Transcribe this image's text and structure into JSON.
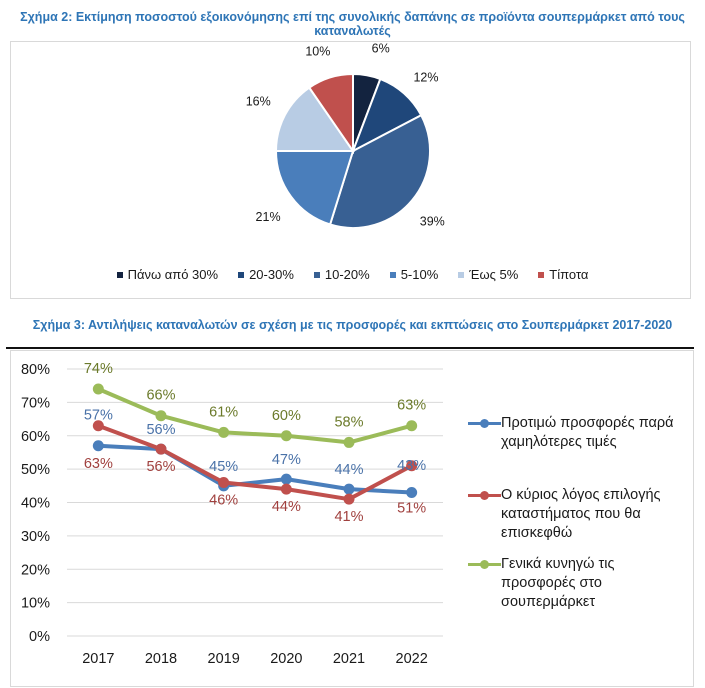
{
  "figure2": {
    "title": "Σχήμα 2: Εκτίμηση ποσοστού εξοικονόμησης επί της συνολικής δαπάνης σε προϊόντα σουπερμάρκετ από τους καταναλωτές"
  },
  "figure3": {
    "title": "Σχήμα 3: Αντιλήψεις καταναλωτών σε σχέση με τις προσφορές και εκπτώσεις στο Σουπερμάρκετ 2017-2020"
  },
  "chart_data": [
    {
      "type": "pie",
      "title": "Σχήμα 2: Εκτίμηση ποσοστού εξοικονόμησης επί της συνολικής δαπάνης σε προϊόντα σουπερμάρκετ από τους καταναλωτές",
      "categories": [
        "Πάνω από 30%",
        "20-30%",
        "10-20%",
        "5-10%",
        "Έως 5%",
        "Τίποτα"
      ],
      "values": [
        6,
        12,
        39,
        21,
        16,
        10
      ],
      "labels": [
        "6%",
        "12%",
        "39%",
        "21%",
        "16%",
        "10%"
      ],
      "colors": [
        "#13233f",
        "#1f477a",
        "#386093",
        "#4a7ebb",
        "#b8cce4",
        "#c0504d"
      ],
      "legend": "bottom",
      "start": "top",
      "direction": "clockwise"
    },
    {
      "type": "line",
      "title": "Σχήμα 3: Αντιλήψεις καταναλωτών σε σχέση με τις προσφορές και εκπτώσεις στο Σουπερμάρκετ 2017-2020",
      "x": [
        "2017",
        "2018",
        "2019",
        "2020",
        "2021",
        "2022"
      ],
      "ylim": [
        0,
        80
      ],
      "yticks": [
        "0%",
        "10%",
        "20%",
        "30%",
        "40%",
        "50%",
        "60%",
        "70%",
        "80%"
      ],
      "grid": true,
      "legend": "right",
      "series": [
        {
          "name": "Προτιμώ προσφορές παρά χαμηλότερες τιμές",
          "color": "#4a7ebb",
          "label_color": "#4a72a8",
          "values": [
            57,
            56,
            45,
            47,
            44,
            43
          ],
          "labels": [
            "57%",
            "56%",
            "45%",
            "47%",
            "44%",
            "43%"
          ]
        },
        {
          "name": "Ο κύριος λόγος επιλογής καταστήματος που θα επισκεφθώ",
          "color": "#c0504d",
          "label_color": "#a0403e",
          "values": [
            63,
            56,
            46,
            44,
            41,
            51
          ],
          "labels": [
            "63%",
            "56%",
            "46%",
            "44%",
            "41%",
            "51%"
          ]
        },
        {
          "name": "Γενικά κυνηγώ τις προσφορές στο σουπερμάρκετ",
          "color": "#9bbb59",
          "label_color": "#6b7a2a",
          "values": [
            74,
            66,
            61,
            60,
            58,
            63
          ],
          "labels": [
            "74%",
            "66%",
            "61%",
            "60%",
            "58%",
            "63%"
          ]
        }
      ]
    }
  ]
}
